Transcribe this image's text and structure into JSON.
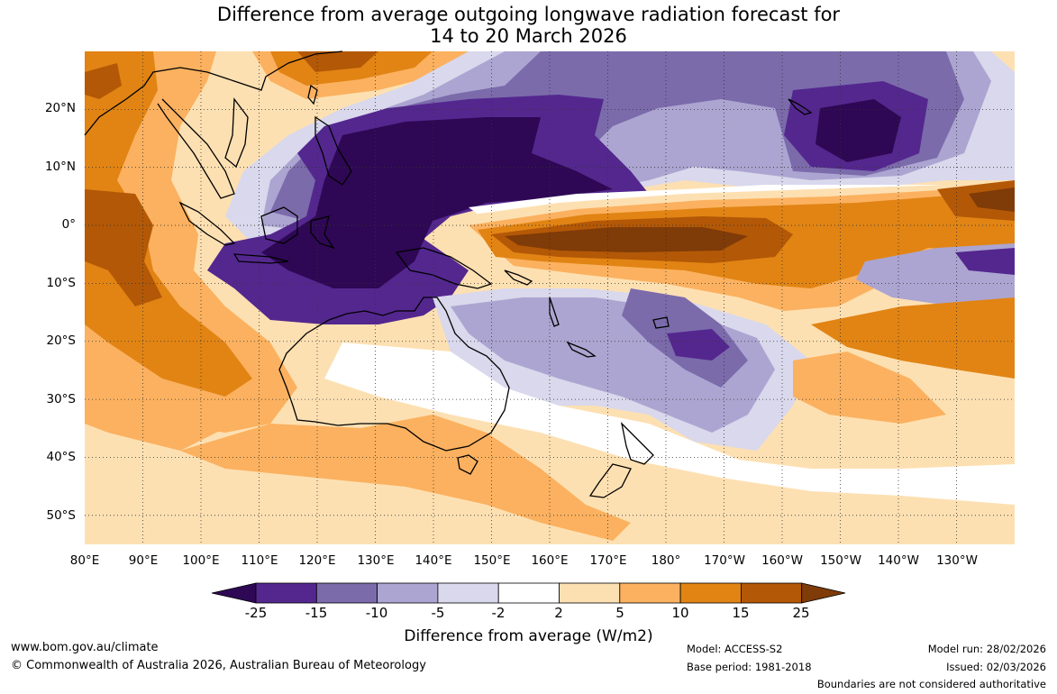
{
  "title": {
    "line1": "Difference from average outgoing longwave radiation forecast for",
    "line2": "14 to 20 March 2026"
  },
  "map": {
    "lat_labels": [
      "20°N",
      "10°N",
      "0°",
      "10°S",
      "20°S",
      "30°S",
      "40°S",
      "50°S"
    ],
    "lon_labels": [
      "80°E",
      "90°E",
      "100°E",
      "110°E",
      "120°E",
      "130°E",
      "140°E",
      "150°E",
      "160°E",
      "170°E",
      "180°",
      "170°W",
      "160°W",
      "150°W",
      "140°W",
      "130°W"
    ],
    "extent": {
      "lon_min": 80,
      "lon_max": 240,
      "lat_min": -55,
      "lat_max": 30
    }
  },
  "colorbar": {
    "ticks": [
      "-25",
      "-15",
      "-10",
      "-5",
      "-2",
      "2",
      "5",
      "10",
      "15",
      "25"
    ],
    "colors": [
      "#2e0854",
      "#54278f",
      "#7b6bab",
      "#aca5d1",
      "#d9d8ec",
      "#ffffff",
      "#fde0b2",
      "#fbb15f",
      "#e18414",
      "#b35806",
      "#7f3b08"
    ],
    "label": "Difference from average (W/m2)"
  },
  "footer": {
    "url": "www.bom.gov.au/climate",
    "copyright": "© Commonwealth of Australia 2026, Australian Bureau of Meteorology",
    "model": "Model: ACCESS-S2",
    "base_period": "Base period: 1981-2018",
    "model_run": "Model run: 28/02/2026",
    "issued": "Issued: 02/03/2026",
    "boundaries": "Boundaries are not considered authoritative"
  }
}
